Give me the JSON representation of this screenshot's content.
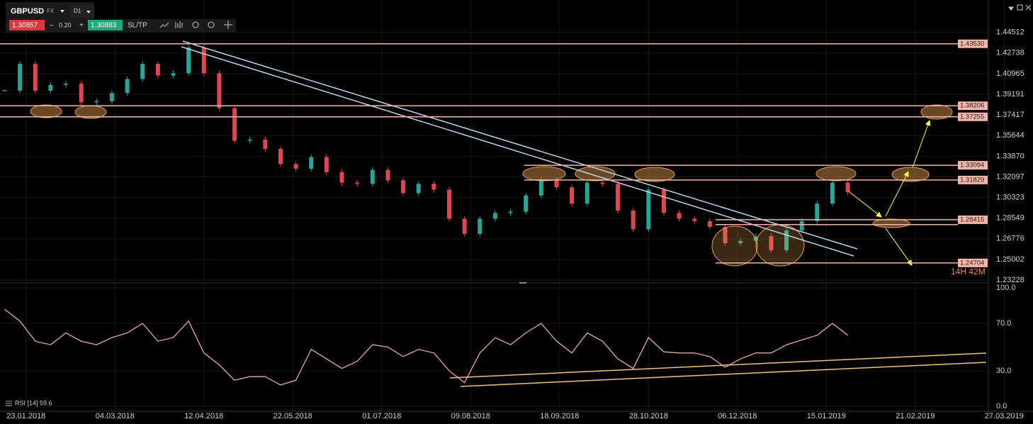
{
  "toolbar": {
    "symbol": "GBPUSD",
    "market": "FX",
    "timeframe": "D1",
    "bid": "1.30857",
    "spread": "0.20",
    "ask": "1.30883",
    "sltp": "SL/TP",
    "countdown": "14H 42M"
  },
  "chart_data": [
    {
      "type": "candlestick",
      "xlim": [
        -8.5,
        328.4
      ],
      "ylim": [
        1.2305,
        1.4729
      ],
      "yticks": [
        1.44512,
        1.42738,
        1.40965,
        1.39191,
        1.37417,
        1.35644,
        {
          "value": 1.3387,
          "label": "1.33870"
        },
        1.32097,
        1.30323,
        1.28549,
        1.26776,
        1.25002,
        1.23228
      ],
      "grid": true,
      "levels": [
        {
          "value": 1.4353,
          "label": "1.43530"
        },
        {
          "value": 1.38206,
          "label": "1.38206"
        },
        {
          "value": 1.37255,
          "label": "1.37255"
        },
        {
          "value": 1.33094,
          "label": "1.33094"
        },
        {
          "value": 1.31829,
          "label": "1.31829"
        },
        {
          "value": 1.28415,
          "label": "1.28415"
        },
        {
          "value": 1.28,
          "label": null
        },
        {
          "value": 1.24704,
          "label": "1.24704"
        }
      ],
      "series": [
        {
          "name": "GBPUSD",
          "color": "#26a69a",
          "x": [
            -7,
            -2,
            3,
            8,
            13,
            18,
            23,
            28,
            33,
            38,
            43,
            48,
            53,
            58,
            63,
            68,
            73,
            78,
            83,
            88,
            93,
            98,
            103,
            108,
            113,
            118,
            123,
            128,
            133,
            138,
            143,
            148,
            153,
            158,
            163,
            168,
            173,
            178,
            183,
            188,
            193,
            198,
            203,
            208,
            213,
            218,
            223,
            228,
            233,
            238,
            243,
            248,
            253,
            258,
            263,
            268
          ],
          "values": [
            1.395,
            1.418,
            1.395,
            1.4,
            1.401,
            1.385,
            1.386,
            1.393,
            1.405,
            1.418,
            1.408,
            1.41,
            1.432,
            1.41,
            1.38,
            1.352,
            1.353,
            1.345,
            1.332,
            1.328,
            1.338,
            1.325,
            1.316,
            1.315,
            1.327,
            1.318,
            1.307,
            1.315,
            1.31,
            1.285,
            1.272,
            1.285,
            1.29,
            1.291,
            1.305,
            1.318,
            1.312,
            1.298,
            1.316,
            1.315,
            1.292,
            1.276,
            1.31,
            1.29,
            1.285,
            1.283,
            1.278,
            1.264,
            1.266,
            1.27,
            1.258,
            1.275,
            1.283,
            1.298,
            1.316,
            1.308
          ]
        }
      ]
    },
    {
      "type": "line",
      "label": "RSI [14] 59.6",
      "xlim": [
        -8.5,
        328.4
      ],
      "ylim": [
        -4.2,
        103.6
      ],
      "yticks": [
        {
          "value": 100,
          "label": "100.0"
        },
        {
          "value": 70,
          "label": "70.0"
        },
        {
          "value": 30,
          "label": "30.0"
        },
        {
          "value": 0,
          "label": "0.0"
        }
      ],
      "xticks": [
        {
          "value": 0,
          "label": "23.01.2018"
        },
        {
          "value": 29,
          "label": "04.03.2018"
        },
        {
          "value": 58,
          "label": "12.04.2018"
        },
        {
          "value": 87,
          "label": "22.05.2018"
        },
        {
          "value": 116,
          "label": "01.07.2018"
        },
        {
          "value": 145,
          "label": "09.08.2018"
        },
        {
          "value": 174,
          "label": "18.09.2018"
        },
        {
          "value": 203,
          "label": "28.10.2018"
        },
        {
          "value": 232,
          "label": "06.12.2018"
        },
        {
          "value": 261,
          "label": "15.01.2019"
        },
        {
          "value": 290,
          "label": "21.02.2019"
        },
        {
          "value": 319,
          "label": "27.03.2019"
        }
      ],
      "grid": true,
      "series": [
        {
          "name": "RSI",
          "color": "#e8a8a0",
          "x": [
            -7,
            -2,
            3,
            8,
            13,
            18,
            23,
            28,
            33,
            38,
            43,
            48,
            53,
            58,
            63,
            68,
            73,
            78,
            83,
            88,
            93,
            98,
            103,
            108,
            113,
            118,
            123,
            128,
            133,
            138,
            143,
            148,
            153,
            158,
            163,
            168,
            173,
            178,
            183,
            188,
            193,
            198,
            203,
            208,
            213,
            218,
            223,
            228,
            233,
            238,
            243,
            248,
            253,
            258,
            263,
            268
          ],
          "values": [
            82,
            72,
            55,
            52,
            62,
            55,
            52,
            58,
            62,
            70,
            55,
            58,
            72,
            45,
            35,
            22,
            25,
            25,
            18,
            22,
            48,
            40,
            32,
            38,
            52,
            50,
            42,
            48,
            45,
            30,
            20,
            45,
            58,
            52,
            62,
            70,
            55,
            45,
            62,
            55,
            40,
            32,
            58,
            46,
            45,
            45,
            42,
            33,
            40,
            45,
            45,
            52,
            56,
            60,
            70,
            60
          ]
        }
      ]
    }
  ]
}
